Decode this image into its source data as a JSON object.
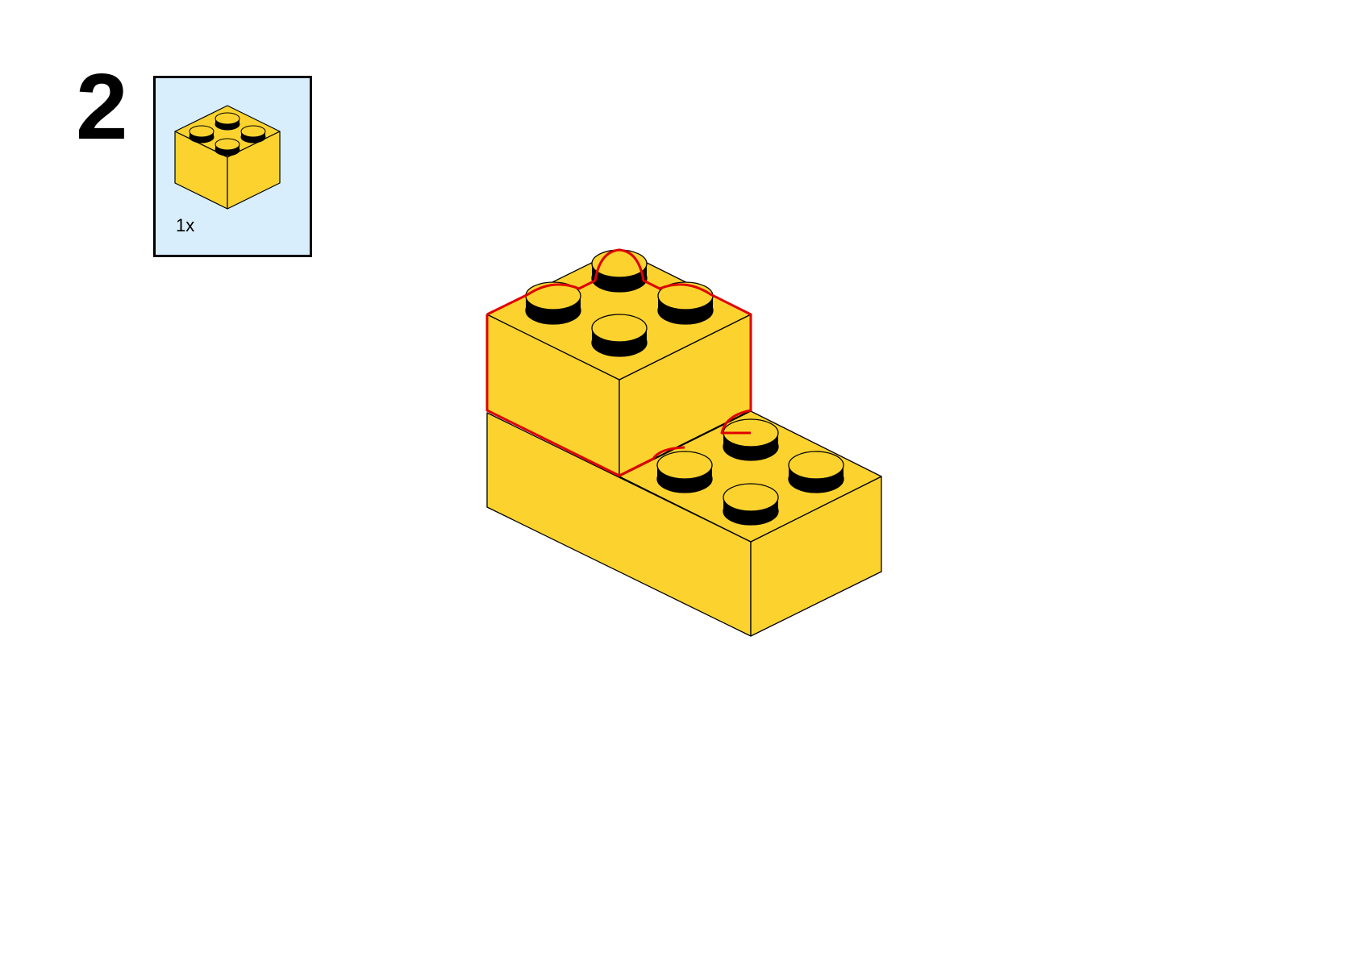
{
  "step": {
    "number": "2"
  },
  "parts_list": {
    "background_color": "#d8eefc",
    "items": [
      {
        "icon": "brick-2x2-icon",
        "quantity": "1x",
        "color": "#fcd32e"
      }
    ]
  },
  "assembly": {
    "brick_color": "#fcd32e",
    "stud_side_color": "#000000",
    "highlight_color": "#e00000",
    "bricks": [
      "brick-2x4-base",
      "brick-2x2-new"
    ]
  }
}
